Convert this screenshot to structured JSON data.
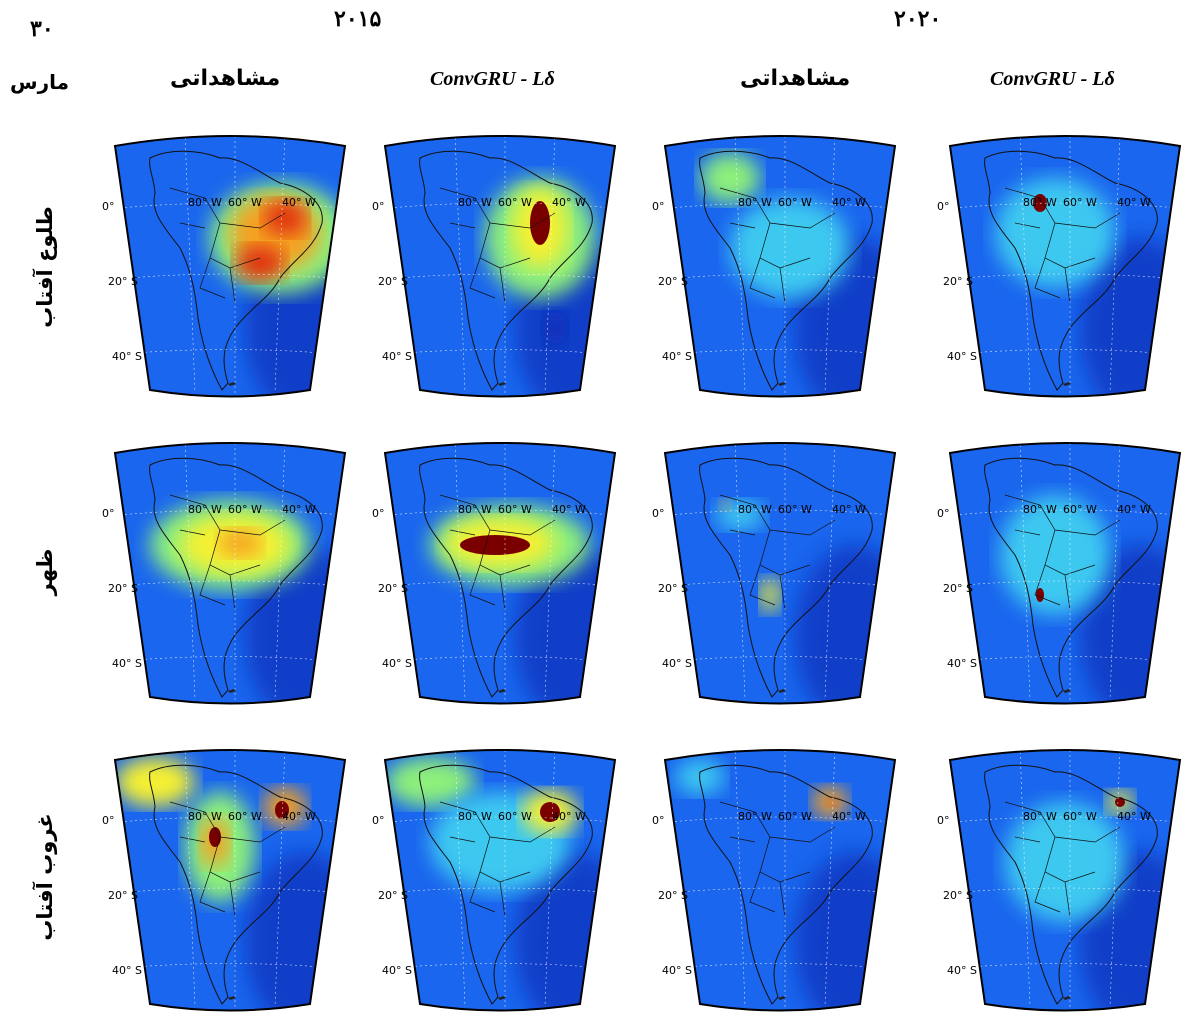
{
  "header": {
    "date_number": "۳۰",
    "date_month": "مارس",
    "year_left": "۲۰۱۵",
    "year_right": "۲۰۲۰",
    "col_observed": "مشاهداتی",
    "col_model": "ConvGRU - Lδ"
  },
  "rows": [
    {
      "label": "طلوع آفتاب"
    },
    {
      "label": "ظهر"
    },
    {
      "label": "غروب آفتاب"
    }
  ],
  "axis_ticks": {
    "lon": [
      "80° W",
      "60° W",
      "40° W"
    ],
    "lat": [
      "0°",
      "20° S",
      "40° S"
    ]
  },
  "colors": {
    "base": "#1a66ee",
    "deep": "#0a2fb8",
    "cyan": "#3cc8f0",
    "green": "#8ef07a",
    "yellow": "#f5f032",
    "orange": "#f5a020",
    "red": "#e03010",
    "darkred": "#7a0000"
  }
}
